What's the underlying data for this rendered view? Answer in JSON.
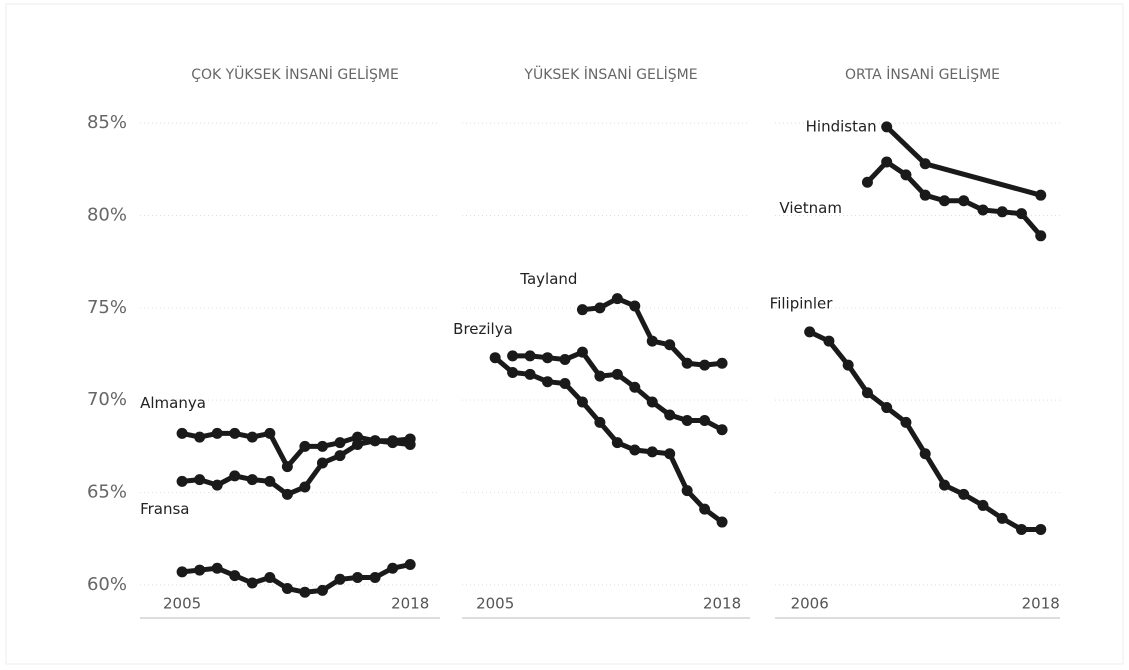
{
  "chart_data": {
    "type": "line",
    "ylim": [
      58.8,
      86.2
    ],
    "yticks": [
      {
        "value": 60,
        "label": "60%"
      },
      {
        "value": 65,
        "label": "65%"
      },
      {
        "value": 70,
        "label": "70%"
      },
      {
        "value": 75,
        "label": "75%"
      },
      {
        "value": 80,
        "label": "80%"
      },
      {
        "value": 85,
        "label": "85%"
      }
    ],
    "grid": true,
    "panels": [
      {
        "title": "ÇOK YÜKSEK İNSANİ GELİŞME",
        "xlim": [
          2002.6,
          2019.7
        ],
        "xticks": [
          2005,
          2018
        ],
        "series": [
          {
            "name": "Almanya",
            "color": "#1a1a1a",
            "x": [
              2005,
              2006,
              2007,
              2008,
              2009,
              2010,
              2011,
              2012,
              2013,
              2014,
              2015,
              2016,
              2017,
              2018
            ],
            "values": [
              68.2,
              68.0,
              68.2,
              68.2,
              68.0,
              68.2,
              66.4,
              67.5,
              67.5,
              67.7,
              68.0,
              67.8,
              67.8,
              67.9
            ]
          },
          {
            "name": "Fransa",
            "color": "#1a1a1a",
            "x": [
              2005,
              2006,
              2007,
              2008,
              2009,
              2010,
              2011,
              2012,
              2013,
              2014,
              2015,
              2016,
              2017,
              2018
            ],
            "values": [
              65.6,
              65.7,
              65.4,
              65.9,
              65.7,
              65.6,
              64.9,
              65.3,
              66.6,
              67.0,
              67.6,
              67.8,
              67.7,
              67.6
            ]
          },
          {
            "color": "#1a1a1a",
            "x": [
              2005,
              2006,
              2007,
              2008,
              2009,
              2010,
              2011,
              2012,
              2013,
              2014,
              2015,
              2016,
              2017,
              2018
            ],
            "values": [
              60.7,
              60.8,
              60.9,
              60.5,
              60.1,
              60.4,
              59.8,
              59.6,
              59.7,
              60.3,
              60.4,
              60.4,
              60.9,
              61.1
            ]
          }
        ]
      },
      {
        "title": "YÜKSEK İNSANİ GELİŞME",
        "xlim": [
          2003.1,
          2019.6
        ],
        "xticks": [
          2005,
          2018
        ],
        "series": [
          {
            "name": "Tayland",
            "color": "#1a1a1a",
            "x": [
              2010,
              2011,
              2012,
              2013,
              2014,
              2015,
              2016,
              2017,
              2018
            ],
            "values": [
              74.9,
              75.0,
              75.5,
              75.1,
              73.2,
              73.0,
              72.0,
              71.9,
              72.0
            ]
          },
          {
            "name": "Brezilya",
            "color": "#1a1a1a",
            "x": [
              2005,
              2006,
              2007,
              2008,
              2009,
              2010,
              2011,
              2012,
              2013,
              2014,
              2015,
              2016,
              2017,
              2018
            ],
            "values": [
              72.3,
              71.5,
              71.4,
              71.0,
              70.9,
              69.9,
              68.8,
              67.7,
              67.3,
              67.2,
              67.1,
              65.1,
              64.1,
              63.4
            ]
          },
          {
            "color": "#1a1a1a",
            "x": [
              2006,
              2007,
              2008,
              2009,
              2010,
              2011,
              2012,
              2013,
              2014,
              2015,
              2016,
              2017,
              2018
            ],
            "values": [
              72.4,
              72.4,
              72.3,
              72.2,
              72.6,
              71.3,
              71.4,
              70.7,
              69.9,
              69.2,
              68.9,
              68.9,
              68.4
            ]
          }
        ]
      },
      {
        "title": "ORTA İNSANİ GELİŞME",
        "xlim": [
          2004.2,
          2019.0
        ],
        "xticks": [
          2006,
          2018
        ],
        "series": [
          {
            "name": "Hindistan",
            "color": "#1a1a1a",
            "x": [
              2010,
              2012,
              2018
            ],
            "values": [
              84.8,
              82.8,
              81.1
            ]
          },
          {
            "name": "Vietnam",
            "color": "#1a1a1a",
            "x": [
              2009,
              2010,
              2011,
              2012,
              2013,
              2014,
              2015,
              2016,
              2017,
              2018
            ],
            "values": [
              81.8,
              82.9,
              82.2,
              81.1,
              80.8,
              80.8,
              80.3,
              80.2,
              80.1,
              78.9
            ]
          },
          {
            "name": "Filipinler",
            "color": "#1a1a1a",
            "x": [
              2006,
              2007,
              2008,
              2009,
              2010,
              2011,
              2012,
              2013,
              2014,
              2015,
              2016,
              2017,
              2018
            ],
            "values": [
              73.7,
              73.2,
              71.9,
              70.4,
              69.6,
              68.8,
              67.1,
              65.4,
              64.9,
              64.3,
              63.6,
              63.0,
              63.0
            ]
          }
        ]
      }
    ]
  }
}
